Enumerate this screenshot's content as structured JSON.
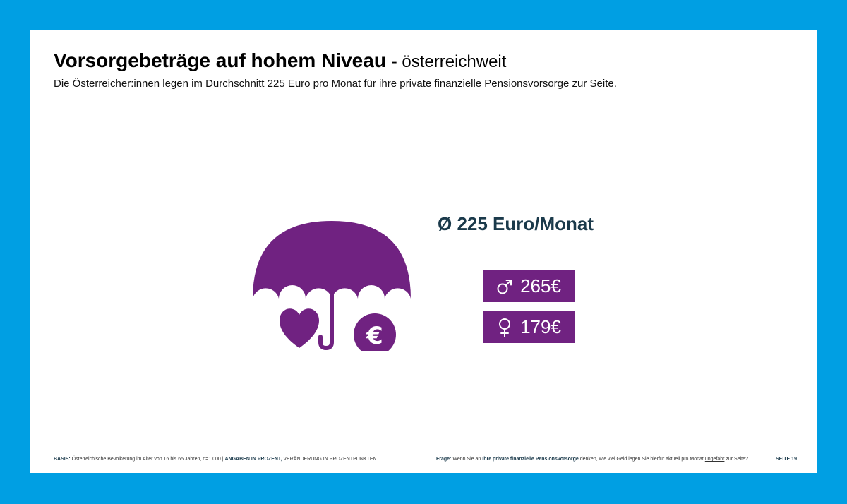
{
  "slide": {
    "title_bold": "Vorsorgebeträge auf hohem Niveau",
    "title_light": "- österreichweit",
    "subtitle": "Die Österreicher:innen legen im Durchschnitt 225 Euro pro Monat für ihre private finanzielle Pensionsvorsorge zur Seite."
  },
  "illustration": {
    "icon": "umbrella-icon",
    "symbols": [
      "heart-icon",
      "euro-icon"
    ],
    "color": "#702281"
  },
  "average": {
    "label": "Ø 225 Euro/Monat"
  },
  "stats": [
    {
      "gender_icon": "male-symbol-icon",
      "value": "265€"
    },
    {
      "gender_icon": "female-symbol-icon",
      "value": "179€"
    }
  ],
  "footer": {
    "basis_label": "BASIS:",
    "basis_text": " Österreichische Bevölkerung im Alter von 16 bis 65 Jahren, n=1.000 | ",
    "units_bold": "ANGABEN IN PROZENT,",
    "units_text": " VERÄNDERUNG IN PROZENTPUNKTEN",
    "question_label": "Frage:",
    "question_pre": " Wenn Sie an ",
    "question_bold": "Ihre private finanzielle Pensionsvorsorge",
    "question_mid": " denken, wie viel Geld legen Sie hierfür aktuell pro Monat ",
    "question_underline": "ungefähr",
    "question_post": " zur Seite?",
    "page": "SEITE 19"
  },
  "colors": {
    "frame": "#009FE3",
    "accent": "#702281",
    "headline": "#1B3A4B"
  }
}
